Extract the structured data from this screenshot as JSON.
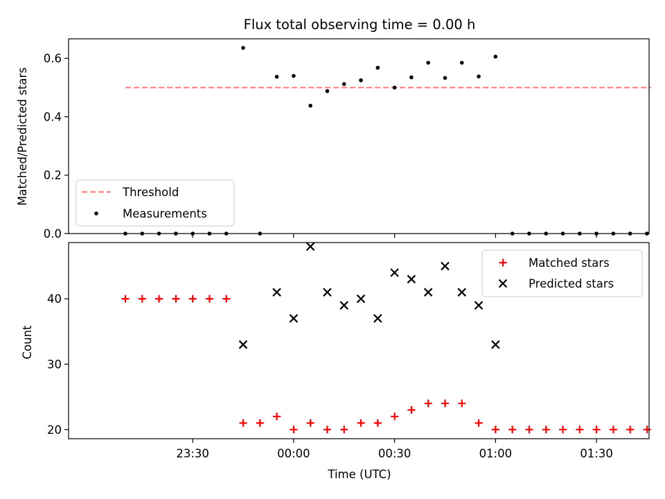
{
  "chart_data": [
    {
      "type": "scatter",
      "title": "Flux total observing time = 0.00 h",
      "xlabel": "",
      "ylabel": "Matched/Predicted stars",
      "ylim": [
        0,
        0.667
      ],
      "yticks": [
        0.0,
        0.2,
        0.4,
        0.6
      ],
      "ytick_labels": [
        "0.0",
        "0.2",
        "0.4",
        "0.6"
      ],
      "xlim": [
        -13.5,
        124.5
      ],
      "legend_position": "lower-left",
      "threshold": {
        "name": "Threshold",
        "value": 0.5,
        "x_start": 0,
        "x_end": 125,
        "color": "#ff7b7b"
      },
      "series": [
        {
          "name": "Measurements",
          "color": "#000000",
          "x": [
            0,
            4,
            8,
            12,
            16,
            20,
            24,
            28,
            32,
            36,
            40,
            44,
            48,
            52,
            56,
            60,
            64,
            68,
            72,
            76,
            80,
            84,
            88,
            92,
            96,
            100,
            104,
            108,
            112,
            116,
            120,
            124
          ],
          "y": [
            0,
            0,
            0,
            0,
            0,
            0,
            0,
            0.636,
            0,
            0.537,
            0.54,
            0.438,
            0.488,
            0.512,
            0.525,
            0.568,
            0.5,
            0.535,
            0.585,
            0.533,
            0.585,
            0.538,
            0.606,
            0,
            0,
            0,
            0,
            0,
            0,
            0,
            0,
            0
          ]
        }
      ]
    },
    {
      "type": "scatter",
      "title": "",
      "xlabel": "Time (UTC)",
      "ylabel": "Count",
      "ylim": [
        18.6,
        48.6
      ],
      "yticks": [
        20,
        30,
        40
      ],
      "ytick_labels": [
        "20",
        "30",
        "40"
      ],
      "xlim": [
        -13.5,
        124.5
      ],
      "xticks": [
        16,
        40,
        64,
        88,
        112
      ],
      "xtick_labels": [
        "23:30",
        "00:00",
        "00:30",
        "01:00",
        "01:30"
      ],
      "legend_position": "upper-right",
      "series": [
        {
          "name": "Matched stars",
          "marker": "plus",
          "color": "#ff0000",
          "x": [
            0,
            4,
            8,
            12,
            16,
            20,
            24,
            28,
            32,
            36,
            40,
            44,
            48,
            52,
            56,
            60,
            64,
            68,
            72,
            76,
            80,
            84,
            88,
            92,
            96,
            100,
            104,
            108,
            112,
            116,
            120,
            124
          ],
          "y": [
            40,
            40,
            40,
            40,
            40,
            40,
            40,
            21,
            21,
            22,
            20,
            21,
            20,
            20,
            21,
            21,
            22,
            23,
            24,
            24,
            24,
            21,
            20,
            20,
            20,
            20,
            20,
            20,
            20,
            20,
            20,
            20
          ]
        },
        {
          "name": "Predicted stars",
          "marker": "x",
          "color": "#000000",
          "x": [
            28,
            36,
            40,
            44,
            48,
            52,
            56,
            60,
            64,
            68,
            72,
            76,
            80,
            84,
            88
          ],
          "y": [
            33,
            41,
            37,
            48,
            41,
            39,
            40,
            37,
            44,
            43,
            41,
            45,
            41,
            39,
            33
          ]
        }
      ]
    }
  ]
}
